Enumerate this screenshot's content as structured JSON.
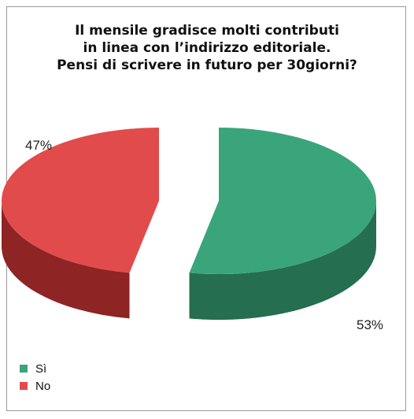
{
  "chart_data": {
    "type": "pie",
    "title_lines": [
      "Il mensile gradisce molti contributi",
      "in linea con l’indirizzo editoriale.",
      "Pensi di scrivere in futuro per 30giorni?"
    ],
    "slices": [
      {
        "label": "Sì",
        "value": 53,
        "value_label": "53%",
        "color": "#3aa47a",
        "side_color": "#256e50"
      },
      {
        "label": "No",
        "value": 47,
        "value_label": "47%",
        "color": "#e24b4b",
        "side_color": "#8e2424"
      }
    ],
    "style": "3d-exploded",
    "legend_position": "bottom-left"
  }
}
